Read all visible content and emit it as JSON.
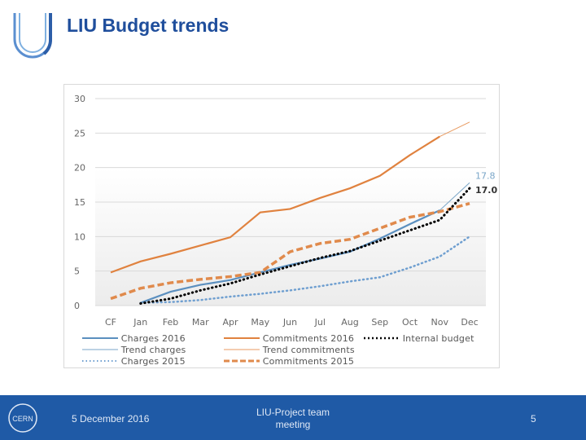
{
  "header": {
    "title": "LIU Budget trends"
  },
  "footer": {
    "date": "5 December 2016",
    "meeting": "LIU-Project team meeting",
    "page": "5"
  },
  "chart_data": {
    "type": "line",
    "categories": [
      "CF",
      "Jan",
      "Feb",
      "Mar",
      "Apr",
      "May",
      "Jun",
      "Jul",
      "Aug",
      "Sep",
      "Oct",
      "Nov",
      "Dec"
    ],
    "ylim": [
      0,
      30
    ],
    "yticks": [
      "0",
      "5",
      "10",
      "15",
      "20",
      "25",
      "30"
    ],
    "grid": true,
    "legend_placement": "bottom",
    "annotations": [
      {
        "text": "17.8",
        "color": "#7aa6c8"
      },
      {
        "text": "17.0",
        "color": "#333333"
      }
    ],
    "series": [
      {
        "name": "Charges 2016",
        "color": "#5b8fbf",
        "style": "solid-thick",
        "values": [
          null,
          0.4,
          2.0,
          3.0,
          3.7,
          4.8,
          5.9,
          6.8,
          7.8,
          9.7,
          11.8,
          13.8,
          null
        ]
      },
      {
        "name": "Trend charges",
        "color": "#7aa6c8",
        "style": "solid-thin",
        "values": [
          null,
          null,
          null,
          null,
          null,
          null,
          null,
          null,
          null,
          null,
          null,
          13.8,
          17.8
        ]
      },
      {
        "name": "Charges 2015",
        "color": "#6f9fd0",
        "style": "dotted",
        "values": [
          null,
          0.4,
          0.5,
          0.8,
          1.3,
          1.7,
          2.2,
          2.8,
          3.5,
          4.1,
          5.5,
          7.1,
          10.0
        ]
      },
      {
        "name": "Commitments 2016",
        "color": "#e0823f",
        "style": "solid-thick",
        "values": [
          4.8,
          6.4,
          7.5,
          8.7,
          9.9,
          13.5,
          14.0,
          15.6,
          17.0,
          18.8,
          21.8,
          24.5,
          null
        ]
      },
      {
        "name": "Trend commitments",
        "color": "#e89a60",
        "style": "solid-thin",
        "values": [
          null,
          null,
          null,
          null,
          null,
          null,
          null,
          null,
          null,
          null,
          null,
          24.5,
          26.6
        ]
      },
      {
        "name": "Commitments 2015",
        "color": "#e08a4c",
        "style": "dashed",
        "values": [
          1.0,
          2.5,
          3.3,
          3.8,
          4.2,
          4.8,
          7.8,
          9.0,
          9.6,
          11.2,
          12.8,
          13.6,
          14.8
        ]
      },
      {
        "name": "Internal budget",
        "color": "#000000",
        "style": "dotted-thick",
        "values": [
          null,
          0.3,
          1.0,
          2.2,
          3.2,
          4.5,
          5.7,
          6.9,
          7.9,
          9.4,
          10.9,
          12.4,
          17.0
        ]
      }
    ]
  }
}
